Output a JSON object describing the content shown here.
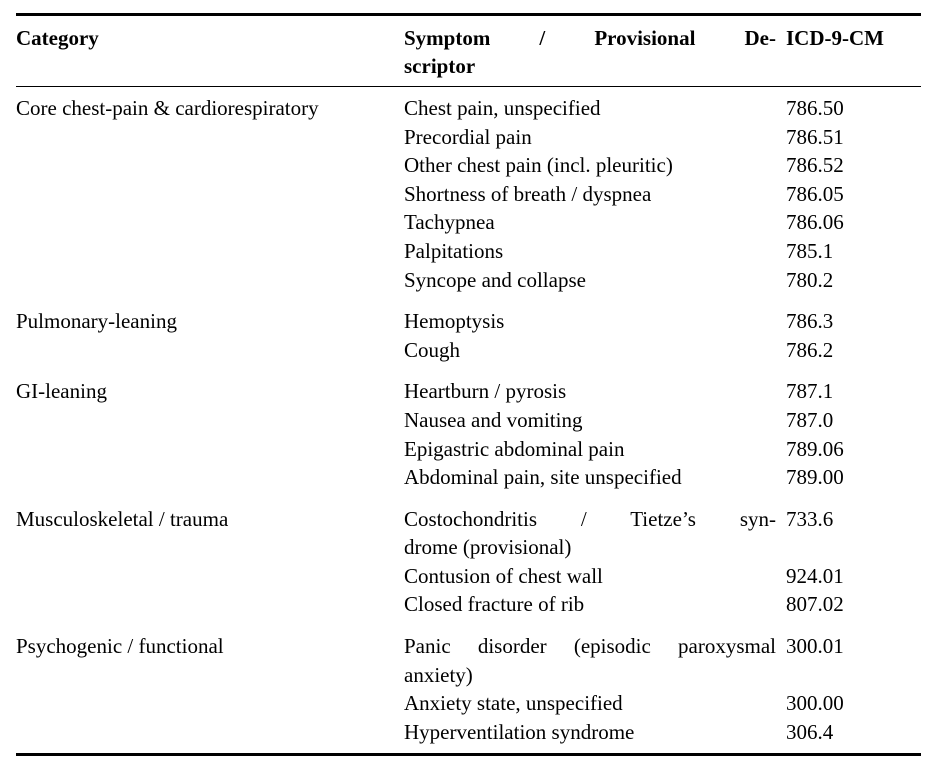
{
  "colors": {
    "background": "#ffffff",
    "text": "#000000",
    "rule": "#000000"
  },
  "table": {
    "header": {
      "category": "Category",
      "symptom_line1": "Symptom / Provisional De-",
      "symptom_line2": "scriptor",
      "code": "ICD-9-CM"
    },
    "groups": [
      {
        "category": "Core chest-pain & cardiorespiratory",
        "entries": [
          {
            "symptom": "Chest pain, unspecified",
            "code": "786.50"
          },
          {
            "symptom": "Precordial pain",
            "code": "786.51"
          },
          {
            "symptom": "Other chest pain (incl. pleuritic)",
            "code": "786.52"
          },
          {
            "symptom": "Shortness of breath / dyspnea",
            "code": "786.05"
          },
          {
            "symptom": "Tachypnea",
            "code": "786.06"
          },
          {
            "symptom": "Palpitations",
            "code": "785.1"
          },
          {
            "symptom": "Syncope and collapse",
            "code": "780.2"
          }
        ]
      },
      {
        "category": "Pulmonary-leaning",
        "entries": [
          {
            "symptom": "Hemoptysis",
            "code": "786.3"
          },
          {
            "symptom": "Cough",
            "code": "786.2"
          }
        ]
      },
      {
        "category": "GI-leaning",
        "entries": [
          {
            "symptom": "Heartburn / pyrosis",
            "code": "787.1"
          },
          {
            "symptom": "Nausea and vomiting",
            "code": "787.0"
          },
          {
            "symptom": "Epigastric abdominal pain",
            "code": "789.06"
          },
          {
            "symptom": "Abdominal pain, site unspecified",
            "code": "789.00"
          }
        ]
      },
      {
        "category": "Musculoskeletal / trauma",
        "entries": [
          {
            "symptom": "Costochondritis / Tietze’s syndrome (provisional)",
            "lines": [
              "Costochondritis / Tietze’s syn-",
              "drome (provisional)"
            ],
            "code": "733.6"
          },
          {
            "symptom": "Contusion of chest wall",
            "code": "924.01"
          },
          {
            "symptom": "Closed fracture of rib",
            "code": "807.02"
          }
        ]
      },
      {
        "category": "Psychogenic / functional",
        "entries": [
          {
            "symptom": "Panic disorder (episodic paroxysmal anxiety)",
            "lines": [
              "Panic disorder (episodic paroxysmal",
              "anxiety)"
            ],
            "code": "300.01"
          },
          {
            "symptom": "Anxiety state, unspecified",
            "code": "300.00"
          },
          {
            "symptom": "Hyperventilation syndrome",
            "code": "306.4"
          }
        ]
      }
    ]
  }
}
